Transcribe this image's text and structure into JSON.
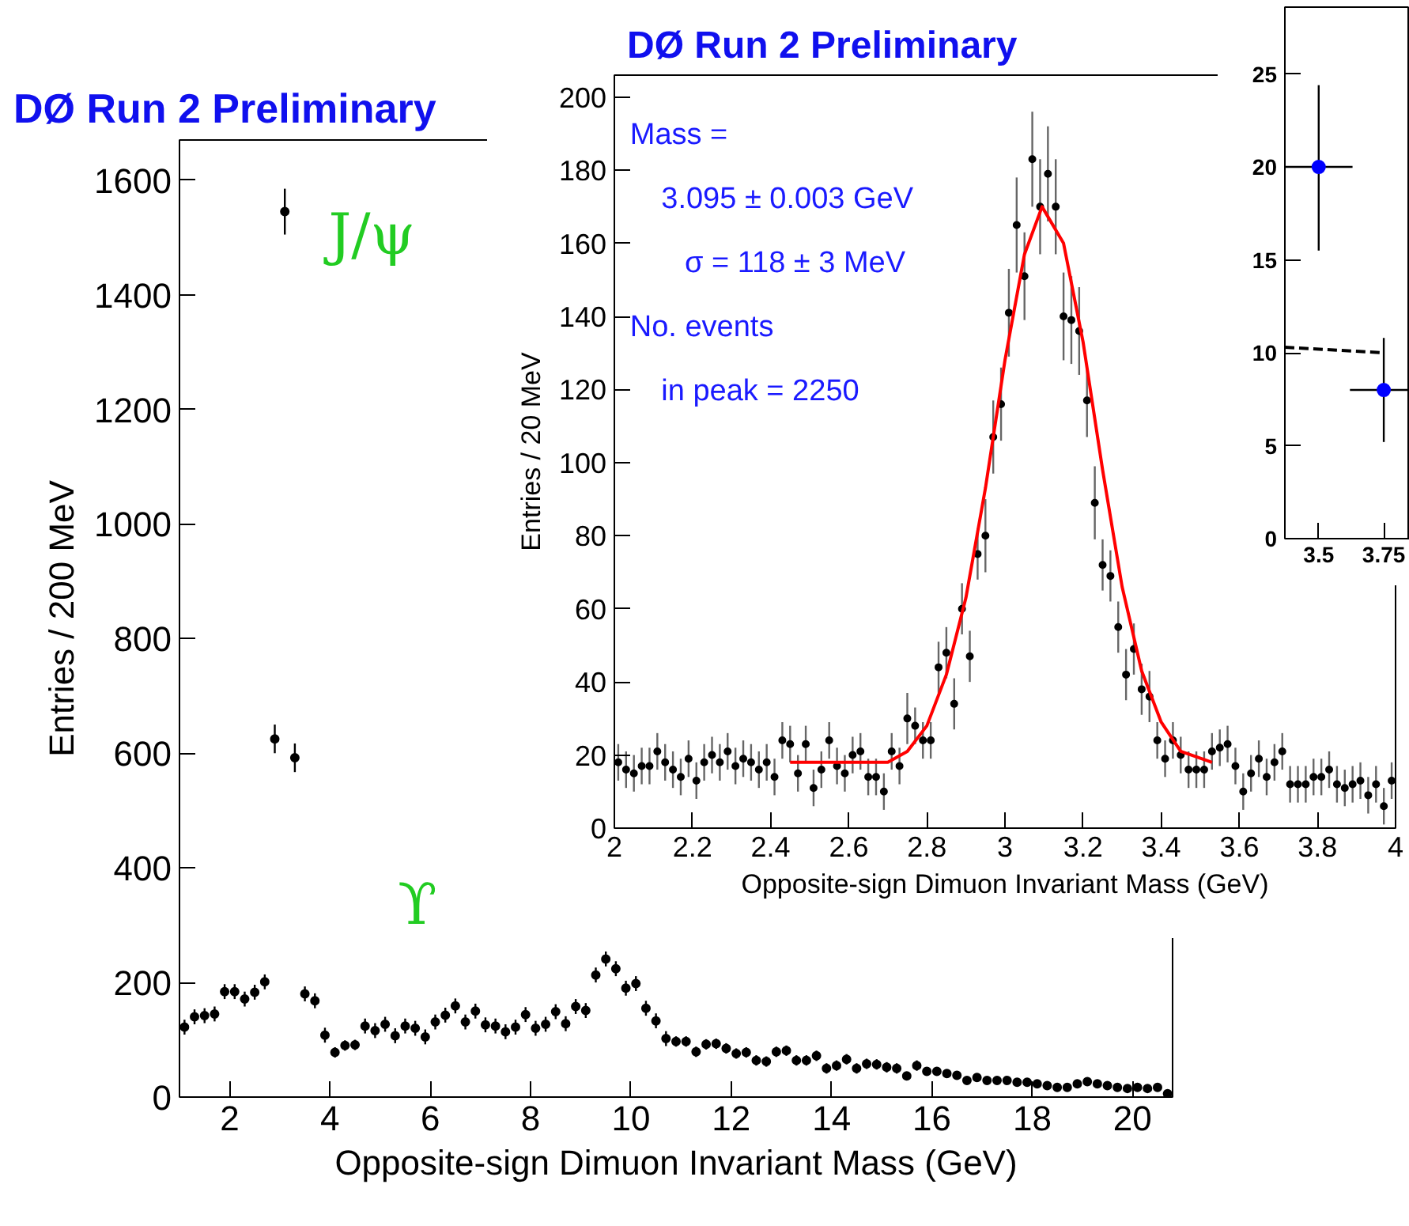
{
  "chart_data": [
    {
      "type": "scatter",
      "title": "DØ Run 2 Preliminary",
      "xlabel": "Opposite-sign Dimuon Invariant Mass (GeV)",
      "ylabel": "Entries / 200 MeV",
      "xlim": [
        1,
        20.8
      ],
      "ylim": [
        0,
        1670
      ],
      "xticks": [
        2,
        4,
        6,
        8,
        10,
        12,
        14,
        16,
        18,
        20
      ],
      "yticks": [
        0,
        200,
        400,
        600,
        800,
        1000,
        1200,
        1400,
        1600
      ],
      "marker": "circle",
      "annotations": [
        "J/ψ",
        "ϒ"
      ],
      "series": [
        {
          "color": "#000000",
          "x": [
            1.1,
            1.3,
            1.5,
            1.7,
            1.9,
            2.1,
            2.3,
            2.5,
            2.7,
            2.9,
            3.1,
            3.3,
            3.5,
            3.7,
            3.9,
            4.1,
            4.3,
            4.5,
            4.7,
            4.9,
            5.1,
            5.3,
            5.5,
            5.7,
            5.9,
            6.1,
            6.3,
            6.5,
            6.7,
            6.9,
            7.1,
            7.3,
            7.5,
            7.7,
            7.9,
            8.1,
            8.3,
            8.5,
            8.7,
            8.9,
            9.1,
            9.3,
            9.5,
            9.7,
            9.9,
            10.1,
            10.3,
            10.5,
            10.7,
            10.9,
            11.1,
            11.3,
            11.5,
            11.7,
            11.9,
            12.1,
            12.3,
            12.5,
            12.7,
            12.9,
            13.1,
            13.3,
            13.5,
            13.7,
            13.9,
            14.1,
            14.3,
            14.5,
            14.7,
            14.9,
            15.1,
            15.3,
            15.5,
            15.7,
            15.9,
            16.1,
            16.3,
            16.5,
            16.7,
            16.9,
            17.1,
            17.3,
            17.5,
            17.7,
            17.9,
            18.1,
            18.3,
            18.5,
            18.7,
            18.9,
            19.1,
            19.3,
            19.5,
            19.7,
            19.9,
            20.1,
            20.3,
            20.5,
            20.7
          ],
          "values": [
            122,
            140,
            142,
            145,
            184,
            184,
            171,
            183,
            201,
            625,
            1545,
            592,
            180,
            168,
            108,
            78,
            90,
            91,
            124,
            116,
            127,
            107,
            124,
            120,
            105,
            131,
            143,
            159,
            131,
            150,
            126,
            124,
            114,
            122,
            144,
            120,
            127,
            149,
            128,
            158,
            151,
            213,
            241,
            224,
            190,
            198,
            155,
            133,
            102,
            97,
            97,
            79,
            92,
            93,
            85,
            76,
            78,
            64,
            62,
            79,
            81,
            64,
            64,
            72,
            50,
            55,
            66,
            50,
            58,
            57,
            52,
            50,
            37,
            55,
            45,
            45,
            41,
            38,
            29,
            34,
            29,
            29,
            29,
            26,
            26,
            23,
            20,
            17,
            17,
            23,
            27,
            23,
            20,
            17,
            15,
            17,
            15,
            17,
            6
          ],
          "errors": [
            13,
            13,
            13,
            13,
            13,
            13,
            13,
            13,
            13,
            25,
            40,
            25,
            13,
            13,
            13,
            9,
            9,
            9,
            13,
            13,
            13,
            13,
            13,
            13,
            13,
            13,
            13,
            13,
            13,
            13,
            13,
            13,
            13,
            13,
            13,
            13,
            13,
            13,
            13,
            13,
            13,
            13,
            13,
            13,
            13,
            13,
            13,
            13,
            13,
            9,
            9,
            9,
            9,
            9,
            9,
            9,
            9,
            9,
            9,
            9,
            9,
            9,
            9,
            9,
            9,
            9,
            9,
            9,
            9,
            9,
            9,
            9,
            6,
            9,
            6,
            6,
            6,
            6,
            6,
            6,
            6,
            6,
            6,
            6,
            6,
            6,
            6,
            6,
            6,
            6,
            6,
            6,
            6,
            6,
            6,
            6,
            6,
            6,
            4
          ]
        }
      ]
    },
    {
      "type": "scatter",
      "title": "DØ Run 2 Preliminary",
      "xlabel": "Opposite-sign Dimuon Invariant Mass (GeV)",
      "ylabel": "Entries / 20 MeV",
      "xlim": [
        2,
        4
      ],
      "ylim": [
        0,
        206
      ],
      "xticks": [
        2,
        2.2,
        2.4,
        2.6,
        2.8,
        3,
        3.2,
        3.4,
        3.6,
        3.8,
        4
      ],
      "yticks": [
        0,
        20,
        40,
        60,
        80,
        100,
        120,
        140,
        160,
        180,
        200
      ],
      "annotations": [
        "Mass =",
        "3.095 ± 0.003 GeV",
        "σ  = 118 ± 3 MeV",
        "No. events",
        "in peak  = 2250"
      ],
      "series": [
        {
          "color": "#000000",
          "marker": "circle",
          "x": [
            2.01,
            2.03,
            2.05,
            2.07,
            2.09,
            2.11,
            2.13,
            2.15,
            2.17,
            2.19,
            2.21,
            2.23,
            2.25,
            2.27,
            2.29,
            2.31,
            2.33,
            2.35,
            2.37,
            2.39,
            2.41,
            2.43,
            2.45,
            2.47,
            2.49,
            2.51,
            2.53,
            2.55,
            2.57,
            2.59,
            2.61,
            2.63,
            2.65,
            2.67,
            2.69,
            2.71,
            2.73,
            2.75,
            2.77,
            2.79,
            2.81,
            2.83,
            2.85,
            2.87,
            2.89,
            2.91,
            2.93,
            2.95,
            2.97,
            2.99,
            3.01,
            3.03,
            3.05,
            3.07,
            3.09,
            3.11,
            3.13,
            3.15,
            3.17,
            3.19,
            3.21,
            3.23,
            3.25,
            3.27,
            3.29,
            3.31,
            3.33,
            3.35,
            3.37,
            3.39,
            3.41,
            3.43,
            3.45,
            3.47,
            3.49,
            3.51,
            3.53,
            3.55,
            3.57,
            3.59,
            3.61,
            3.63,
            3.65,
            3.67,
            3.69,
            3.71,
            3.73,
            3.75,
            3.77,
            3.79,
            3.81,
            3.83,
            3.85,
            3.87,
            3.89,
            3.91,
            3.93,
            3.95,
            3.97,
            3.99
          ],
          "values": [
            18,
            16,
            15,
            17,
            17,
            21,
            18,
            16,
            14,
            19,
            13,
            18,
            20,
            18,
            21,
            17,
            19,
            18,
            16,
            18,
            14,
            24,
            23,
            15,
            23,
            11,
            16,
            24,
            17,
            15,
            20,
            21,
            14,
            14,
            10,
            21,
            17,
            30,
            28,
            24,
            24,
            44,
            48,
            34,
            60,
            47,
            75,
            80,
            107,
            116,
            141,
            165,
            151,
            183,
            170,
            179,
            170,
            140,
            139,
            136,
            117,
            89,
            72,
            69,
            55,
            42,
            49,
            38,
            36,
            24,
            19,
            24,
            20,
            16,
            16,
            16,
            21,
            22,
            23,
            17,
            10,
            15,
            19,
            14,
            18,
            21,
            12,
            12,
            12,
            14,
            14,
            16,
            12,
            11,
            12,
            13,
            9,
            12,
            6,
            13
          ],
          "errors": [
            5,
            5,
            5,
            5,
            5,
            5,
            5,
            5,
            5,
            5,
            5,
            5,
            5,
            5,
            5,
            5,
            5,
            5,
            5,
            5,
            5,
            5,
            5,
            5,
            5,
            5,
            5,
            5,
            5,
            5,
            5,
            5,
            5,
            5,
            5,
            5,
            5,
            7,
            5,
            5,
            5,
            7,
            7,
            7,
            7,
            7,
            7,
            10,
            10,
            10,
            12,
            13,
            12,
            13,
            13,
            13,
            13,
            12,
            12,
            12,
            10,
            10,
            7,
            7,
            7,
            7,
            7,
            7,
            7,
            5,
            5,
            5,
            5,
            5,
            5,
            5,
            5,
            5,
            5,
            5,
            5,
            5,
            5,
            5,
            5,
            5,
            5,
            5,
            5,
            5,
            5,
            5,
            5,
            5,
            5,
            5,
            5,
            5,
            5,
            5
          ]
        },
        {
          "type": "line",
          "color": "#ff0000",
          "x": [
            2.45,
            2.7,
            2.75,
            2.8,
            2.85,
            2.9,
            2.95,
            3.0,
            3.05,
            3.095,
            3.15,
            3.2,
            3.25,
            3.3,
            3.35,
            3.4,
            3.45,
            3.53
          ],
          "values": [
            18,
            18,
            21,
            28,
            42,
            63,
            93,
            128,
            157,
            170,
            160,
            133,
            98,
            66,
            43,
            29,
            21,
            18
          ]
        }
      ]
    },
    {
      "type": "scatter",
      "xlim": [
        3.37,
        3.85
      ],
      "ylim": [
        0,
        28.6
      ],
      "xticks": [
        3.5,
        3.75
      ],
      "yticks": [
        0,
        5,
        10,
        15,
        20,
        25
      ],
      "series": [
        {
          "color": "#0000ff",
          "marker": "circle",
          "x": [
            3.5,
            3.75
          ],
          "values": [
            20,
            8
          ],
          "errors": [
            [
              15.5,
              24.4
            ],
            [
              5.2,
              10.8
            ]
          ],
          "xerrors": [
            0.13,
            0.13
          ]
        },
        {
          "type": "line",
          "color": "#000000",
          "line_style": "dashed",
          "x": [
            3.37,
            3.75
          ],
          "values": [
            10.3,
            10.0
          ]
        }
      ]
    }
  ]
}
